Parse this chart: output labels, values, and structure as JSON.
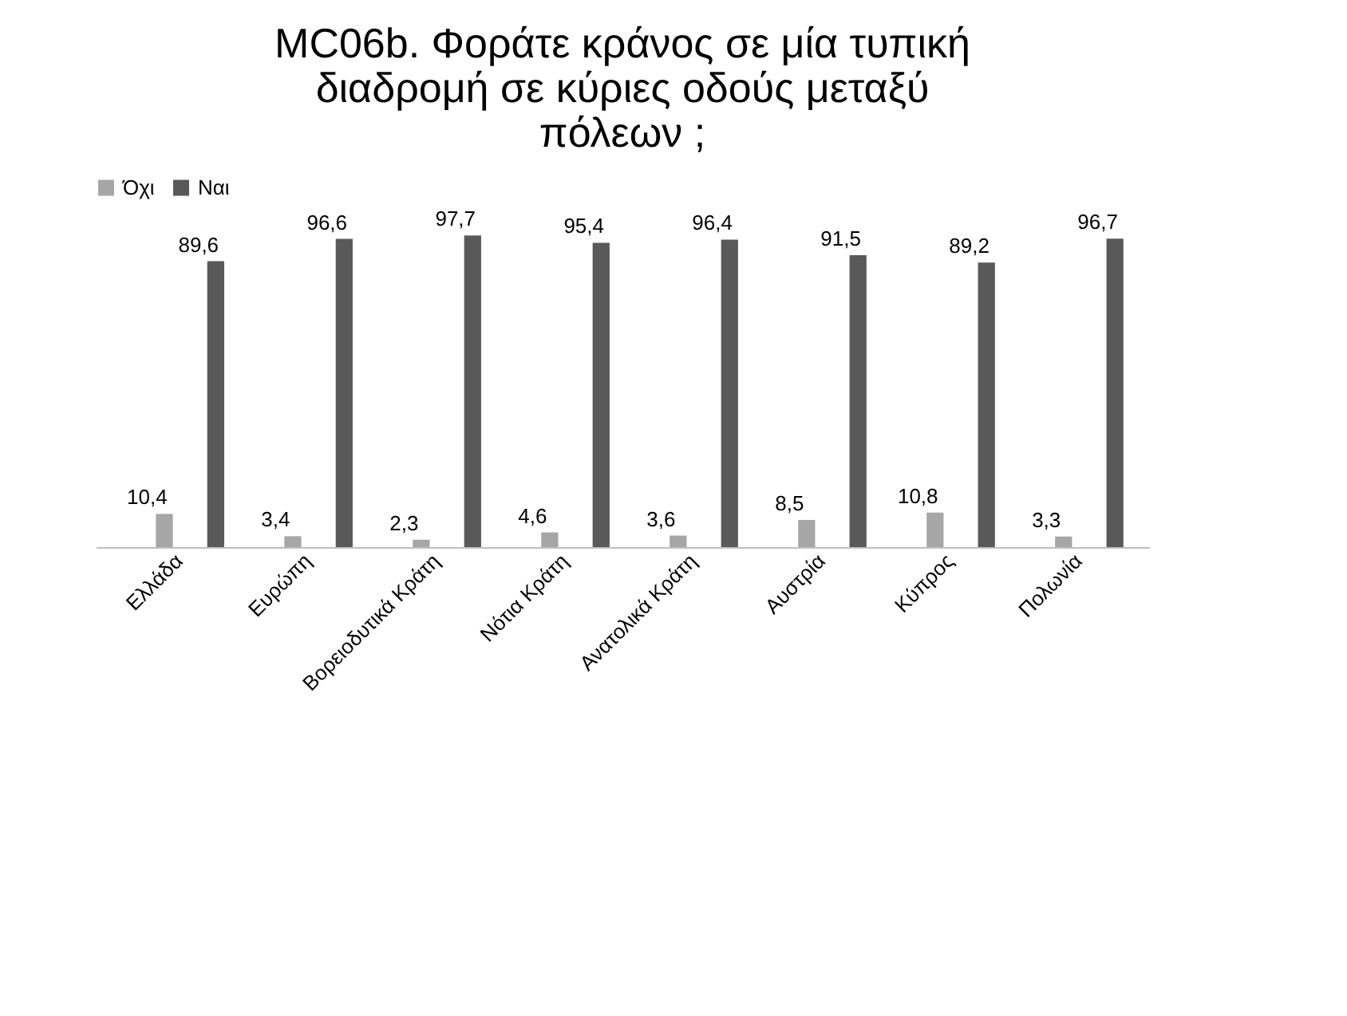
{
  "chart_data": {
    "type": "bar",
    "title": "MC06b. Φοράτε κράνος σε μία τυπική διαδρομή σε κύριες οδούς μεταξύ πόλεων ;",
    "categories": [
      "Ελλάδα",
      "Ευρώπη",
      "Βορειοδυτικά Κράτη",
      "Νότια Κράτη",
      "Ανατολικά Κράτη",
      "Αυστρία",
      "Κύπρος",
      "Πολωνία"
    ],
    "series": [
      {
        "name": "Όχι",
        "color": "#a6a6a6",
        "values": [
          10.4,
          3.4,
          2.3,
          4.6,
          3.6,
          8.5,
          10.8,
          3.3
        ],
        "value_labels": [
          "10,4",
          "3,4",
          "2,3",
          "4,6",
          "3,6",
          "8,5",
          "10,8",
          "3,3"
        ]
      },
      {
        "name": "Ναι",
        "color": "#595959",
        "values": [
          89.6,
          96.6,
          97.7,
          95.4,
          96.4,
          91.5,
          89.2,
          96.7
        ],
        "value_labels": [
          "89,6",
          "96,6",
          "97,7",
          "95,4",
          "96,4",
          "91,5",
          "89,2",
          "96,7"
        ]
      }
    ],
    "legend": "top"
  }
}
